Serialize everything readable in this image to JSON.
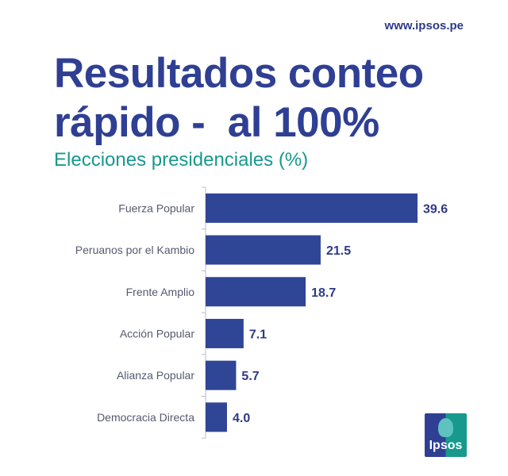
{
  "header": {
    "url": "www.ipsos.pe",
    "title": "Resultados conteo\nrápido -  al 100%",
    "subtitle": "Elecciones presidenciales (%)"
  },
  "logo": {
    "text": "Ipsos",
    "colors": [
      "#2f3f93",
      "#17998e"
    ]
  },
  "chart_data": {
    "type": "bar",
    "orientation": "horizontal",
    "categories": [
      "Fuerza Popular",
      "Peruanos por el Kambio",
      "Frente Amplio",
      "Acción Popular",
      "Alianza Popular",
      "Democracia Directa"
    ],
    "values": [
      39.6,
      21.5,
      18.7,
      7.1,
      5.7,
      4.0
    ],
    "value_labels": [
      "39.6",
      "21.5",
      "18.7",
      "7.1",
      "5.7",
      "4.0"
    ],
    "xlim": [
      0,
      40
    ],
    "grid": false,
    "bar_color": "#2f4596",
    "label_color": "#2e3a87"
  }
}
